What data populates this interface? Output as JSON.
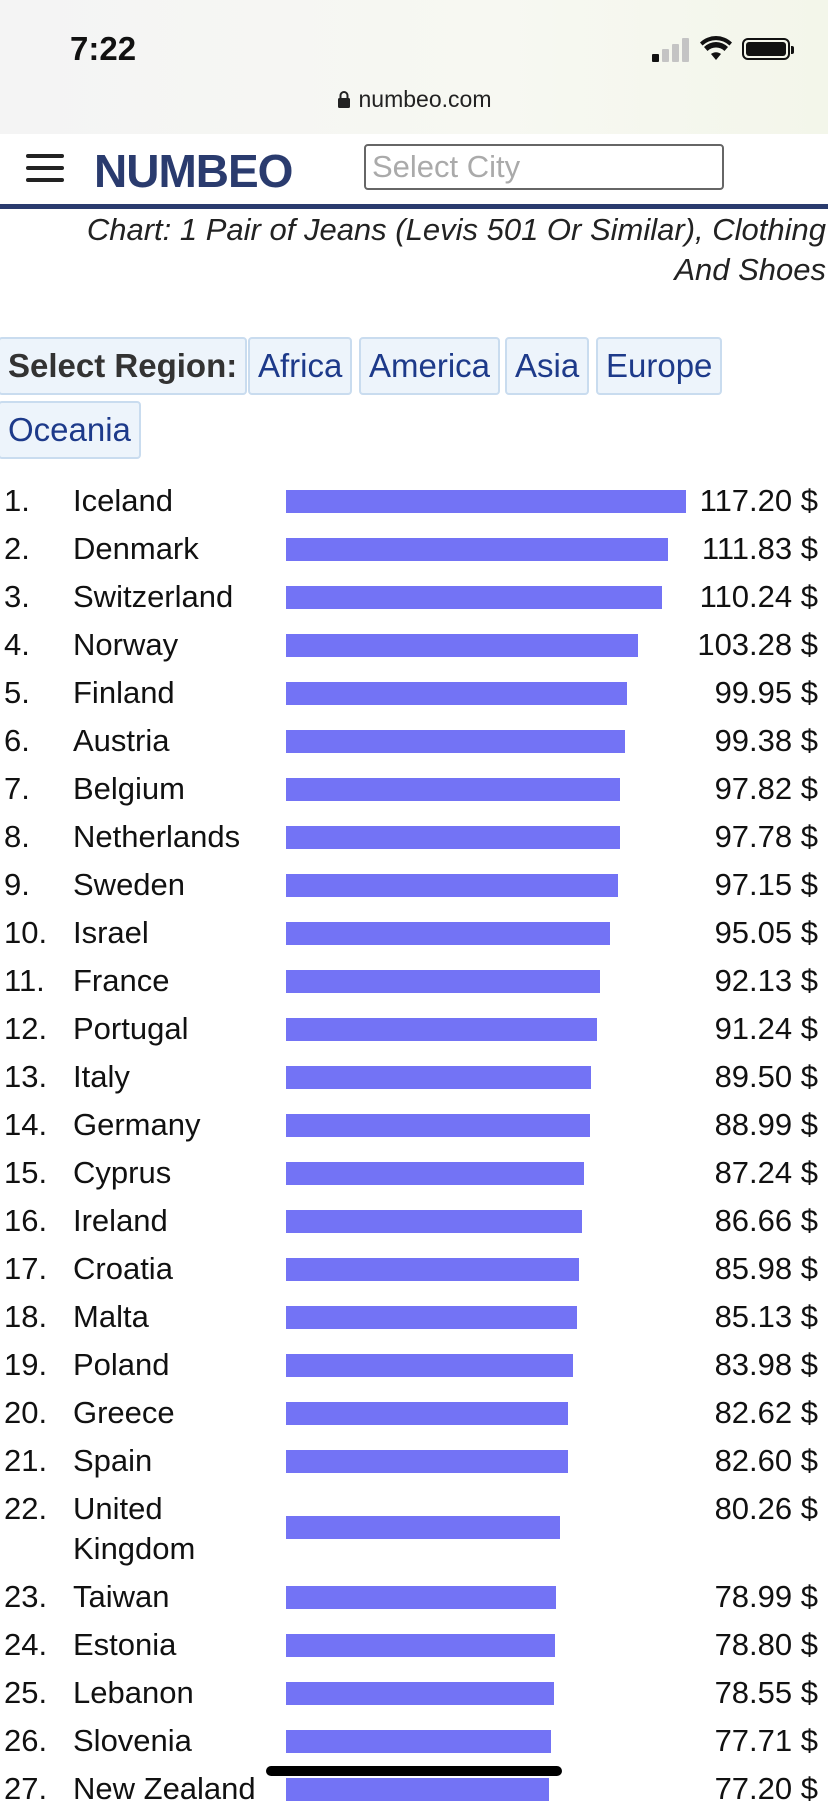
{
  "status_bar": {
    "time": "7:22",
    "url": "numbeo.com"
  },
  "header": {
    "logo": "NUMBEO",
    "city_placeholder": "Select City"
  },
  "chart_title": "Chart: 1 Pair of Jeans (Levis 501 Or Similar), Clothing And Shoes",
  "regions": {
    "label": "Select Region:",
    "buttons": [
      "Africa",
      "America",
      "Asia",
      "Europe",
      "Oceania"
    ]
  },
  "colors": {
    "bar": "#7373f5",
    "brand": "#2a3b6e",
    "link": "#1d3a8a"
  },
  "chart_data": {
    "type": "bar",
    "orientation": "horizontal",
    "unit": "$",
    "rows": [
      {
        "rank": "1.",
        "country": "Iceland",
        "value": 117.2,
        "label": "117.20 $"
      },
      {
        "rank": "2.",
        "country": "Denmark",
        "value": 111.83,
        "label": "111.83 $"
      },
      {
        "rank": "3.",
        "country": "Switzerland",
        "value": 110.24,
        "label": "110.24 $"
      },
      {
        "rank": "4.",
        "country": "Norway",
        "value": 103.28,
        "label": "103.28 $"
      },
      {
        "rank": "5.",
        "country": "Finland",
        "value": 99.95,
        "label": "99.95 $"
      },
      {
        "rank": "6.",
        "country": "Austria",
        "value": 99.38,
        "label": "99.38 $"
      },
      {
        "rank": "7.",
        "country": "Belgium",
        "value": 97.82,
        "label": "97.82 $"
      },
      {
        "rank": "8.",
        "country": "Netherlands",
        "value": 97.78,
        "label": "97.78 $"
      },
      {
        "rank": "9.",
        "country": "Sweden",
        "value": 97.15,
        "label": "97.15 $"
      },
      {
        "rank": "10.",
        "country": "Israel",
        "value": 95.05,
        "label": "95.05 $"
      },
      {
        "rank": "11.",
        "country": "France",
        "value": 92.13,
        "label": "92.13 $"
      },
      {
        "rank": "12.",
        "country": "Portugal",
        "value": 91.24,
        "label": "91.24 $"
      },
      {
        "rank": "13.",
        "country": "Italy",
        "value": 89.5,
        "label": "89.50 $"
      },
      {
        "rank": "14.",
        "country": "Germany",
        "value": 88.99,
        "label": "88.99 $"
      },
      {
        "rank": "15.",
        "country": "Cyprus",
        "value": 87.24,
        "label": "87.24 $"
      },
      {
        "rank": "16.",
        "country": "Ireland",
        "value": 86.66,
        "label": "86.66 $"
      },
      {
        "rank": "17.",
        "country": "Croatia",
        "value": 85.98,
        "label": "85.98 $"
      },
      {
        "rank": "18.",
        "country": "Malta",
        "value": 85.13,
        "label": "85.13 $"
      },
      {
        "rank": "19.",
        "country": "Poland",
        "value": 83.98,
        "label": "83.98 $"
      },
      {
        "rank": "20.",
        "country": "Greece",
        "value": 82.62,
        "label": "82.62 $"
      },
      {
        "rank": "21.",
        "country": "Spain",
        "value": 82.6,
        "label": "82.60 $"
      },
      {
        "rank": "22.",
        "country": "United Kingdom",
        "value": 80.26,
        "label": "80.26 $"
      },
      {
        "rank": "23.",
        "country": "Taiwan",
        "value": 78.99,
        "label": "78.99 $"
      },
      {
        "rank": "24.",
        "country": "Estonia",
        "value": 78.8,
        "label": "78.80 $"
      },
      {
        "rank": "25.",
        "country": "Lebanon",
        "value": 78.55,
        "label": "78.55 $"
      },
      {
        "rank": "26.",
        "country": "Slovenia",
        "value": 77.71,
        "label": "77.71 $"
      },
      {
        "rank": "27.",
        "country": "New Zealand",
        "value": 77.2,
        "label": "77.20 $"
      }
    ]
  }
}
